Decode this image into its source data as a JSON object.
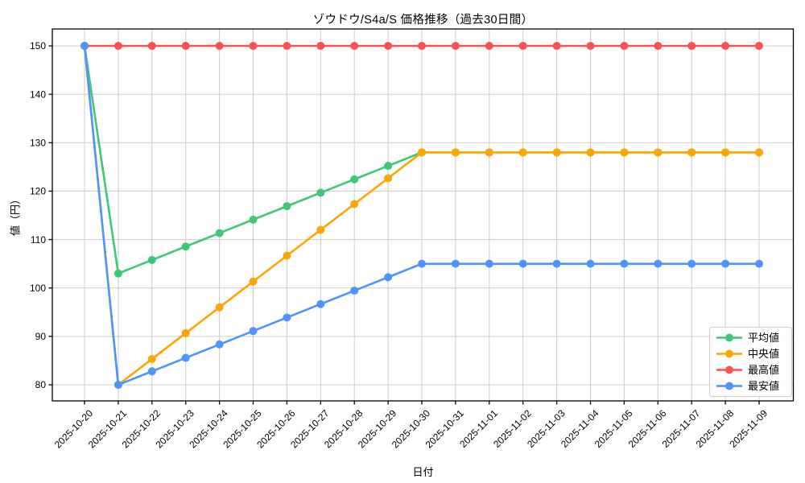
{
  "chart_data": {
    "type": "line",
    "title": "ゾウドウ/S4a/S 価格推移（過去30日間）",
    "xlabel": "日付",
    "ylabel": "値（円）",
    "x": [
      "2025-10-20",
      "2025-10-21",
      "2025-10-22",
      "2025-10-23",
      "2025-10-24",
      "2025-10-25",
      "2025-10-26",
      "2025-10-27",
      "2025-10-28",
      "2025-10-29",
      "2025-10-30",
      "2025-10-31",
      "2025-11-01",
      "2025-11-02",
      "2025-11-03",
      "2025-11-04",
      "2025-11-05",
      "2025-11-06",
      "2025-11-07",
      "2025-11-08",
      "2025-11-09"
    ],
    "series": [
      {
        "key": "avg",
        "name": "平均値",
        "color": "#3cc878",
        "values": [
          150,
          103,
          105.78,
          108.56,
          111.33,
          114.11,
          116.89,
          119.67,
          122.44,
          125.22,
          128,
          128,
          128,
          128,
          128,
          128,
          128,
          128,
          128,
          128,
          128
        ]
      },
      {
        "key": "median",
        "name": "中央値",
        "color": "#ffa502",
        "values": [
          150,
          80,
          85.33,
          90.67,
          96,
          101.33,
          106.67,
          112,
          117.33,
          122.67,
          128,
          128,
          128,
          128,
          128,
          128,
          128,
          128,
          128,
          128,
          128
        ]
      },
      {
        "key": "max",
        "name": "最高値",
        "color": "#fa5252",
        "values": [
          150,
          150,
          150,
          150,
          150,
          150,
          150,
          150,
          150,
          150,
          150,
          150,
          150,
          150,
          150,
          150,
          150,
          150,
          150,
          150,
          150
        ]
      },
      {
        "key": "min",
        "name": "最安値",
        "color": "#4d94ff",
        "values": [
          150,
          80,
          82.78,
          85.56,
          88.33,
          91.11,
          93.89,
          96.67,
          99.44,
          102.22,
          105,
          105,
          105,
          105,
          105,
          105,
          105,
          105,
          105,
          105,
          105
        ]
      }
    ],
    "yticks": [
      80,
      90,
      100,
      110,
      120,
      130,
      140,
      150
    ],
    "ylim": [
      76.5,
      153.5
    ],
    "grid": true,
    "grid_color": "#cccccc",
    "legend_position": "lower right",
    "x_tick_rotation": 45,
    "marker": "circle"
  }
}
